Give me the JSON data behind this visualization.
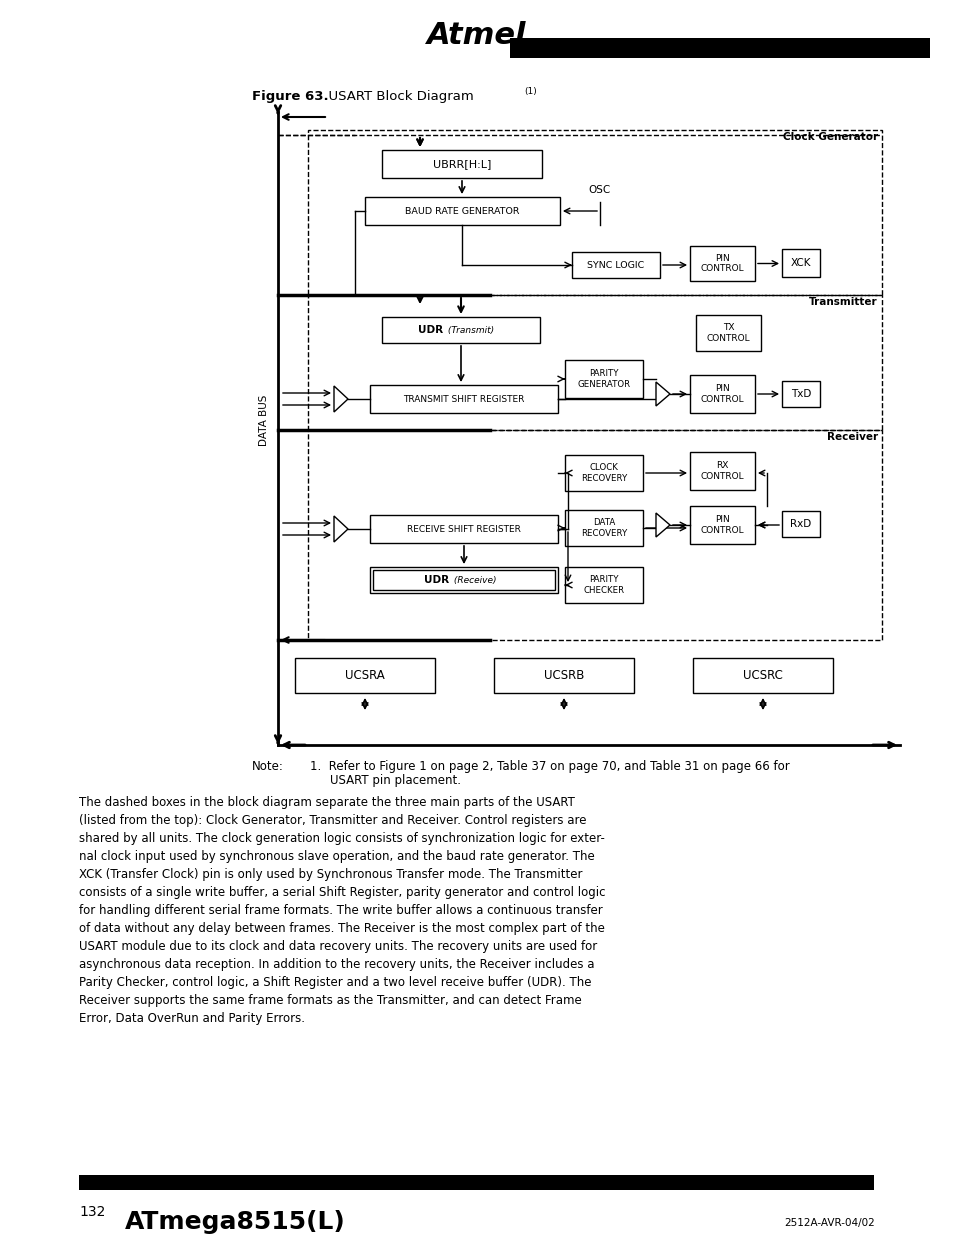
{
  "bg_color": "#ffffff",
  "fig_title_bold": "Figure 63.",
  "fig_title_normal": "  USART Block Diagram",
  "fig_title_sup": "(1)",
  "page_num": "132",
  "chip_name": "ATmega8515(L)",
  "footer_ref": "2512A-AVR-04/02",
  "note_label": "Note:",
  "note_num": "1.",
  "note_line1": " Refer to Figure 1 on page 2, Table 37 on page 70, and Table 31 on page 66 for",
  "note_line2": "USART pin placement.",
  "body_text": "The dashed boxes in the block diagram separate the three main parts of the USART\n(listed from the top): Clock Generator, Transmitter and Receiver. Control registers are\nshared by all units. The clock generation logic consists of synchronization logic for exter-\nnal clock input used by synchronous slave operation, and the baud rate generator. The\nXCK (Transfer Clock) pin is only used by Synchronous Transfer mode. The Transmitter\nconsists of a single write buffer, a serial Shift Register, parity generator and control logic\nfor handling different serial frame formats. The write buffer allows a continuous transfer\nof data without any delay between frames. The Receiver is the most complex part of the\nUSART module due to its clock and data recovery units. The recovery units are used for\nasynchronous data reception. In addition to the recovery units, the Receiver includes a\nParity Checker, control logic, a Shift Register and a two level receive buffer (UDR). The\nReceiver supports the same frame formats as the Transmitter, and can detect Frame\nError, Data OverRun and Parity Errors."
}
